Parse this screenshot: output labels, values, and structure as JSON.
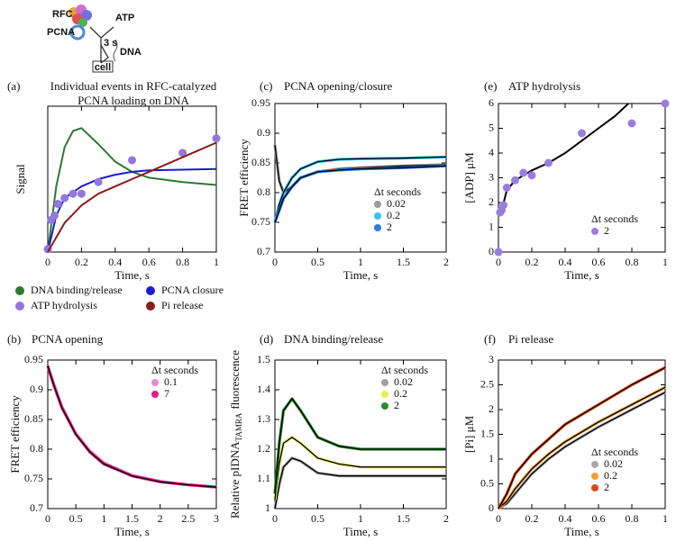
{
  "schematic": {
    "labels": [
      "RFC",
      "ATP",
      "PCNA",
      "3 s",
      "DNA",
      "cell"
    ]
  },
  "chart_data": [
    {
      "type": "line",
      "panel": "(a)",
      "title": [
        "Individual events in RFC-catalyzed",
        "PCNA loading on DNA"
      ],
      "x_label": "Time, s",
      "y_label": "Signal",
      "xlim": [
        0,
        1
      ],
      "ylim": [
        0,
        1
      ],
      "xticks": [
        0,
        0.2,
        0.4,
        0.6,
        0.8,
        1
      ],
      "legend": "below",
      "series": [
        {
          "name": "DNA binding/release",
          "color": "#2d7a32",
          "mode": "lines",
          "x": [
            0,
            0.05,
            0.1,
            0.15,
            0.2,
            0.3,
            0.4,
            0.5,
            0.6,
            0.8,
            1
          ],
          "values": [
            0,
            0.45,
            0.72,
            0.83,
            0.85,
            0.74,
            0.62,
            0.55,
            0.51,
            0.48,
            0.46
          ]
        },
        {
          "name": "PCNA closure",
          "color": "#1c1ccc",
          "mode": "lines",
          "x": [
            0,
            0.05,
            0.1,
            0.2,
            0.3,
            0.4,
            0.5,
            0.6,
            0.8,
            1
          ],
          "values": [
            0,
            0.25,
            0.37,
            0.45,
            0.5,
            0.53,
            0.55,
            0.56,
            0.565,
            0.57
          ]
        },
        {
          "name": "ATP hydrolysis",
          "color": "#9278dc",
          "mode": "markers",
          "x": [
            0,
            0.02,
            0.04,
            0.06,
            0.1,
            0.15,
            0.2,
            0.3,
            0.5,
            0.8,
            1
          ],
          "values": [
            0.02,
            0.22,
            0.25,
            0.33,
            0.37,
            0.4,
            0.4,
            0.48,
            0.63,
            0.68,
            0.78
          ]
        },
        {
          "name": "Pi release",
          "color": "#8a1c1c",
          "mode": "lines",
          "x": [
            0,
            0.05,
            0.1,
            0.2,
            0.3,
            0.4,
            0.5,
            0.6,
            0.7,
            0.8,
            0.9,
            1
          ],
          "values": [
            0,
            0.1,
            0.2,
            0.32,
            0.4,
            0.45,
            0.5,
            0.55,
            0.6,
            0.65,
            0.7,
            0.75
          ]
        }
      ]
    },
    {
      "type": "line",
      "panel": "(b)",
      "title": [
        "PCNA opening"
      ],
      "x_label": "Time, s",
      "y_label": "FRET efficiency",
      "xlim": [
        0,
        3
      ],
      "ylim": [
        0.7,
        0.95
      ],
      "xticks": [
        0,
        0.5,
        1,
        1.5,
        2,
        2.5,
        3
      ],
      "yticks": [
        0.7,
        0.75,
        0.8,
        0.85,
        0.9,
        0.95
      ],
      "legend_title": "Δt seconds",
      "legend": "upper right",
      "fit": true,
      "x": [
        0,
        0.1,
        0.25,
        0.5,
        0.75,
        1,
        1.5,
        2,
        2.5,
        3
      ],
      "series": [
        {
          "name": "0.1",
          "color": "#e48ad6",
          "mode": "lines",
          "values": [
            0.94,
            0.912,
            0.872,
            0.826,
            0.797,
            0.777,
            0.756,
            0.746,
            0.74,
            0.737
          ]
        },
        {
          "name": "7",
          "color": "#e0207f",
          "mode": "lines",
          "values": [
            0.94,
            0.91,
            0.87,
            0.825,
            0.795,
            0.775,
            0.755,
            0.745,
            0.74,
            0.736
          ]
        }
      ]
    },
    {
      "type": "line",
      "panel": "(c)",
      "title": [
        "PCNA opening/closure"
      ],
      "x_label": "Time, s",
      "y_label": "FRET efficiency",
      "xlim": [
        0,
        2
      ],
      "ylim": [
        0.7,
        0.95
      ],
      "xticks": [
        0,
        0.5,
        1,
        1.5,
        2
      ],
      "yticks": [
        0.7,
        0.75,
        0.8,
        0.85,
        0.9,
        0.95
      ],
      "legend_title": "Δt seconds",
      "legend": "right",
      "fit": true,
      "x": [
        0,
        0.05,
        0.1,
        0.2,
        0.3,
        0.5,
        0.75,
        1,
        1.5,
        2
      ],
      "series": [
        {
          "name": "0.02",
          "color": "#9a9a9a",
          "mode": "lines",
          "values": [
            0.88,
            0.82,
            0.8,
            0.81,
            0.825,
            0.835,
            0.84,
            0.842,
            0.845,
            0.847
          ]
        },
        {
          "name": "0.2",
          "color": "#36c4f0",
          "mode": "lines",
          "values": [
            0.75,
            0.78,
            0.8,
            0.825,
            0.84,
            0.852,
            0.856,
            0.857,
            0.858,
            0.86
          ]
        },
        {
          "name": "2",
          "color": "#2a7de1",
          "mode": "lines",
          "values": [
            0.75,
            0.77,
            0.79,
            0.81,
            0.825,
            0.835,
            0.838,
            0.84,
            0.842,
            0.845
          ]
        }
      ]
    },
    {
      "type": "line",
      "panel": "(d)",
      "title": [
        "DNA binding/release"
      ],
      "x_label": "Time, s",
      "y_label_parts": [
        "Relative pIDNA",
        "TAMRA",
        "fluorescence"
      ],
      "xlim": [
        0,
        2
      ],
      "ylim": [
        1,
        1.5
      ],
      "xticks": [
        0,
        0.5,
        1,
        1.5,
        2
      ],
      "yticks": [
        1,
        1.1,
        1.2,
        1.3,
        1.4,
        1.5
      ],
      "legend_title": "Δt seconds",
      "legend": "upper right",
      "fit": true,
      "x": [
        0,
        0.05,
        0.1,
        0.2,
        0.3,
        0.5,
        0.75,
        1,
        1.5,
        2
      ],
      "series": [
        {
          "name": "0.02",
          "color": "#a0a0a0",
          "mode": "lines",
          "values": [
            1.0,
            1.08,
            1.14,
            1.17,
            1.16,
            1.12,
            1.11,
            1.11,
            1.11,
            1.11
          ]
        },
        {
          "name": "0.2",
          "color": "#e6ef5a",
          "mode": "lines",
          "values": [
            1.03,
            1.15,
            1.22,
            1.24,
            1.22,
            1.17,
            1.15,
            1.14,
            1.14,
            1.14
          ]
        },
        {
          "name": "2",
          "color": "#2a8a2a",
          "mode": "lines",
          "values": [
            1.05,
            1.22,
            1.33,
            1.37,
            1.33,
            1.24,
            1.21,
            1.2,
            1.2,
            1.2
          ]
        }
      ]
    },
    {
      "type": "scatter",
      "panel": "(e)",
      "title": [
        "ATP hydrolysis"
      ],
      "x_label": "Time, s",
      "y_label": "[ADP] μM",
      "xlim": [
        0,
        1
      ],
      "ylim": [
        0,
        6
      ],
      "xticks": [
        0,
        0.2,
        0.4,
        0.6,
        0.8,
        1
      ],
      "yticks": [
        0,
        1,
        2,
        3,
        4,
        5,
        6
      ],
      "legend_title": "Δt seconds",
      "legend": "lower right",
      "series": [
        {
          "color": "#000000",
          "mode": "lines",
          "x": [
            0.02,
            0.05,
            0.1,
            0.2,
            0.3,
            0.4,
            0.5,
            0.6,
            0.7,
            0.78
          ],
          "values": [
            1.7,
            2.5,
            2.9,
            3.3,
            3.6,
            4.0,
            4.5,
            5.0,
            5.5,
            6
          ]
        },
        {
          "name": "2",
          "color": "#9a7de0",
          "mode": "markers",
          "x": [
            0,
            0.01,
            0.02,
            0.03,
            0.05,
            0.1,
            0.15,
            0.2,
            0.3,
            0.5,
            0.8,
            1
          ],
          "values": [
            0,
            1.6,
            1.7,
            1.9,
            2.6,
            2.9,
            3.2,
            3.1,
            3.6,
            4.8,
            5.2,
            6
          ]
        }
      ]
    },
    {
      "type": "line",
      "panel": "(f)",
      "title": [
        "Pi release"
      ],
      "x_label": "Time, s",
      "y_label": "[Pi] μM",
      "xlim": [
        0,
        1
      ],
      "ylim": [
        0,
        3
      ],
      "xticks": [
        0,
        0.2,
        0.4,
        0.6,
        0.8,
        1
      ],
      "yticks": [
        0,
        0.5,
        1,
        1.5,
        2,
        2.5,
        3
      ],
      "legend_title": "Δt seconds",
      "legend": "lower right",
      "fit": true,
      "x": [
        0,
        0.05,
        0.1,
        0.2,
        0.3,
        0.4,
        0.6,
        0.8,
        1
      ],
      "series": [
        {
          "name": "0.02",
          "color": "#aaaaaa",
          "mode": "lines",
          "values": [
            0,
            0.1,
            0.3,
            0.7,
            1.0,
            1.25,
            1.65,
            2.0,
            2.35
          ]
        },
        {
          "name": "0.2",
          "color": "#f0a030",
          "mode": "lines",
          "values": [
            0,
            0.15,
            0.4,
            0.8,
            1.1,
            1.35,
            1.75,
            2.1,
            2.45
          ]
        },
        {
          "name": "2",
          "color": "#e04a10",
          "mode": "lines",
          "values": [
            0,
            0.3,
            0.7,
            1.1,
            1.4,
            1.7,
            2.1,
            2.5,
            2.85
          ]
        }
      ]
    }
  ]
}
